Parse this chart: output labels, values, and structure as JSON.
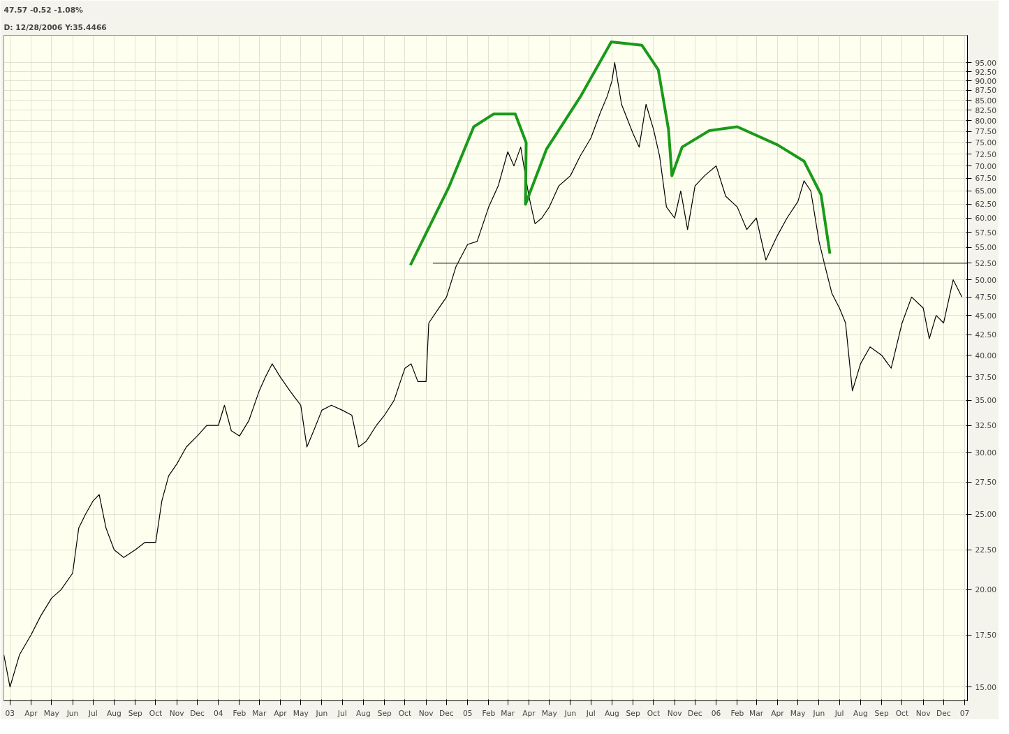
{
  "chart_data": {
    "type": "line",
    "annotations": [
      "47.57  -0.52  -1.08%",
      "D: 12/28/2006 Y:35.4466"
    ],
    "xlim": [
      "2003-02-20",
      "2007-01-05"
    ],
    "ylim": [
      14.4,
      103
    ],
    "log": "y",
    "grid": true,
    "marker": "none",
    "line_style": "solid",
    "xticks": [
      {
        "value": "2003-03-01",
        "label": "03"
      },
      {
        "value": "2003-04-01",
        "label": "Apr"
      },
      {
        "value": "2003-05-01",
        "label": "May"
      },
      {
        "value": "2003-06-01",
        "label": "Jun"
      },
      {
        "value": "2003-07-01",
        "label": "Jul"
      },
      {
        "value": "2003-08-01",
        "label": "Aug"
      },
      {
        "value": "2003-09-01",
        "label": "Sep"
      },
      {
        "value": "2003-10-01",
        "label": "Oct"
      },
      {
        "value": "2003-11-01",
        "label": "Nov"
      },
      {
        "value": "2003-12-01",
        "label": "Dec"
      },
      {
        "value": "2004-01-01",
        "label": "04"
      },
      {
        "value": "2004-02-01",
        "label": "Feb"
      },
      {
        "value": "2004-03-01",
        "label": "Mar"
      },
      {
        "value": "2004-04-01",
        "label": "Apr"
      },
      {
        "value": "2004-05-01",
        "label": "May"
      },
      {
        "value": "2004-06-01",
        "label": "Jun"
      },
      {
        "value": "2004-07-01",
        "label": "Jul"
      },
      {
        "value": "2004-08-01",
        "label": "Aug"
      },
      {
        "value": "2004-09-01",
        "label": "Sep"
      },
      {
        "value": "2004-10-01",
        "label": "Oct"
      },
      {
        "value": "2004-11-01",
        "label": "Nov"
      },
      {
        "value": "2004-12-01",
        "label": "Dec"
      },
      {
        "value": "2005-01-01",
        "label": "05"
      },
      {
        "value": "2005-02-01",
        "label": "Feb"
      },
      {
        "value": "2005-03-01",
        "label": "Mar"
      },
      {
        "value": "2005-04-01",
        "label": "Apr"
      },
      {
        "value": "2005-05-01",
        "label": "May"
      },
      {
        "value": "2005-06-01",
        "label": "Jun"
      },
      {
        "value": "2005-07-01",
        "label": "Jul"
      },
      {
        "value": "2005-08-01",
        "label": "Aug"
      },
      {
        "value": "2005-09-01",
        "label": "Sep"
      },
      {
        "value": "2005-10-01",
        "label": "Oct"
      },
      {
        "value": "2005-11-01",
        "label": "Nov"
      },
      {
        "value": "2005-12-01",
        "label": "Dec"
      },
      {
        "value": "2006-01-01",
        "label": "06"
      },
      {
        "value": "2006-02-01",
        "label": "Feb"
      },
      {
        "value": "2006-03-01",
        "label": "Mar"
      },
      {
        "value": "2006-04-01",
        "label": "Apr"
      },
      {
        "value": "2006-05-01",
        "label": "May"
      },
      {
        "value": "2006-06-01",
        "label": "Jun"
      },
      {
        "value": "2006-07-01",
        "label": "Jul"
      },
      {
        "value": "2006-08-01",
        "label": "Aug"
      },
      {
        "value": "2006-09-01",
        "label": "Sep"
      },
      {
        "value": "2006-10-01",
        "label": "Oct"
      },
      {
        "value": "2006-11-01",
        "label": "Nov"
      },
      {
        "value": "2006-12-01",
        "label": "Dec"
      },
      {
        "value": "2007-01-01",
        "label": "07"
      }
    ],
    "yticks": [
      {
        "value": 15,
        "label": "15.00"
      },
      {
        "value": 17.5,
        "label": "17.50"
      },
      {
        "value": 20,
        "label": "20.00"
      },
      {
        "value": 22.5,
        "label": "22.50"
      },
      {
        "value": 25,
        "label": "25.00"
      },
      {
        "value": 27.5,
        "label": "27.50"
      },
      {
        "value": 30,
        "label": "30.00"
      },
      {
        "value": 32.5,
        "label": "32.50"
      },
      {
        "value": 35,
        "label": "35.00"
      },
      {
        "value": 37.5,
        "label": "37.50"
      },
      {
        "value": 40,
        "label": "40.00"
      },
      {
        "value": 42.5,
        "label": "42.50"
      },
      {
        "value": 45,
        "label": "45.00"
      },
      {
        "value": 47.5,
        "label": "47.50"
      },
      {
        "value": 50,
        "label": "50.00"
      },
      {
        "value": 52.5,
        "label": "52.50"
      },
      {
        "value": 55,
        "label": "55.00"
      },
      {
        "value": 57.5,
        "label": "57.50"
      },
      {
        "value": 60,
        "label": "60.00"
      },
      {
        "value": 62.5,
        "label": "62.50"
      },
      {
        "value": 65,
        "label": "65.00"
      },
      {
        "value": 67.5,
        "label": "67.50"
      },
      {
        "value": 70,
        "label": "70.00"
      },
      {
        "value": 72.5,
        "label": "72.50"
      },
      {
        "value": 75,
        "label": "75.00"
      },
      {
        "value": 77.5,
        "label": "77.50"
      },
      {
        "value": 80,
        "label": "80.00"
      },
      {
        "value": 82.5,
        "label": "82.50"
      },
      {
        "value": 85,
        "label": "85.00"
      },
      {
        "value": 87.5,
        "label": "87.50"
      },
      {
        "value": 90,
        "label": "90.00"
      },
      {
        "value": 92.5,
        "label": "92.50"
      },
      {
        "value": 95,
        "label": "95.00"
      }
    ],
    "series": [
      {
        "color": "#000000",
        "x": [
          "2003-02-20",
          "2003-03-01",
          "2003-03-15",
          "2003-04-01",
          "2003-04-15",
          "2003-05-01",
          "2003-05-15",
          "2003-06-01",
          "2003-06-10",
          "2003-06-20",
          "2003-07-01",
          "2003-07-10",
          "2003-07-20",
          "2003-08-01",
          "2003-08-15",
          "2003-09-01",
          "2003-09-15",
          "2003-10-01",
          "2003-10-10",
          "2003-10-20",
          "2003-11-01",
          "2003-11-15",
          "2003-12-01",
          "2003-12-15",
          "2004-01-01",
          "2004-01-10",
          "2004-01-20",
          "2004-02-01",
          "2004-02-15",
          "2004-03-01",
          "2004-03-10",
          "2004-03-20",
          "2004-04-01",
          "2004-04-15",
          "2004-05-01",
          "2004-05-10",
          "2004-05-20",
          "2004-06-01",
          "2004-06-15",
          "2004-07-01",
          "2004-07-15",
          "2004-07-25",
          "2004-08-05",
          "2004-08-20",
          "2004-09-01",
          "2004-09-15",
          "2004-10-01",
          "2004-10-10",
          "2004-10-20",
          "2004-11-01",
          "2004-11-05",
          "2004-11-20",
          "2004-12-01",
          "2004-12-15",
          "2005-01-01",
          "2005-01-15",
          "2005-02-01",
          "2005-02-15",
          "2005-03-01",
          "2005-03-10",
          "2005-03-20",
          "2005-04-01",
          "2005-04-10",
          "2005-04-20",
          "2005-05-01",
          "2005-05-15",
          "2005-06-01",
          "2005-06-15",
          "2005-07-01",
          "2005-07-15",
          "2005-07-25",
          "2005-08-01",
          "2005-08-05",
          "2005-08-15",
          "2005-09-01",
          "2005-09-10",
          "2005-09-20",
          "2005-10-01",
          "2005-10-10",
          "2005-10-20",
          "2005-11-01",
          "2005-11-10",
          "2005-11-20",
          "2005-12-01",
          "2005-12-15",
          "2006-01-01",
          "2006-01-15",
          "2006-02-01",
          "2006-02-15",
          "2006-03-01",
          "2006-03-15",
          "2006-04-01",
          "2006-04-15",
          "2006-05-01",
          "2006-05-10",
          "2006-05-20",
          "2006-06-01",
          "2006-06-10",
          "2006-06-20",
          "2006-07-01",
          "2006-07-10",
          "2006-07-20",
          "2006-08-01",
          "2006-08-15",
          "2006-09-01",
          "2006-09-15",
          "2006-10-01",
          "2006-10-15",
          "2006-11-01",
          "2006-11-10",
          "2006-11-20",
          "2006-12-01",
          "2006-12-15",
          "2006-12-28"
        ],
        "values": [
          16.5,
          15,
          16.5,
          17.5,
          18.5,
          19.5,
          20,
          21,
          24,
          25,
          26,
          26.5,
          24,
          22.5,
          22,
          22.5,
          23,
          23,
          26,
          28,
          29,
          30.5,
          31.5,
          32.5,
          32.5,
          34.5,
          32,
          31.5,
          33,
          36,
          37.5,
          39,
          37.5,
          36,
          34.5,
          30.5,
          32,
          34,
          34.5,
          34,
          33.5,
          30.5,
          31,
          32.5,
          33.5,
          35,
          38.5,
          39,
          37,
          37,
          44,
          46,
          47.5,
          52,
          55.5,
          56,
          62,
          66,
          73,
          70,
          74,
          64,
          59,
          60,
          62,
          66,
          68,
          72,
          76,
          82,
          86,
          90,
          95,
          84,
          77,
          74,
          84,
          78,
          72,
          62,
          60,
          65,
          58,
          66,
          68,
          70,
          64,
          62,
          58,
          60,
          53,
          57,
          60,
          63,
          67,
          65,
          56,
          52,
          48,
          46,
          44,
          36,
          39,
          41,
          40,
          38.5,
          44,
          47.5,
          46,
          42,
          45,
          44,
          50,
          47.5
        ]
      },
      {
        "color": "#3a4a2a",
        "x": [
          "2004-11-11",
          "2007-01-05"
        ],
        "values": [
          52.5,
          52.5
        ]
      },
      {
        "color": "#1a9a1a",
        "x": [
          "2004-10-09",
          "2004-12-05",
          "2005-01-10",
          "2005-02-08",
          "2005-03-12",
          "2005-03-28",
          "2005-03-27",
          "2005-04-27",
          "2005-06-16",
          "2005-07-31",
          "2005-09-14",
          "2005-10-08",
          "2005-10-23",
          "2005-10-28",
          "2005-11-12",
          "2005-12-22",
          "2006-02-01",
          "2006-04-01",
          "2006-05-10",
          "2006-06-04",
          "2006-06-17"
        ],
        "values": [
          52.2,
          65.9,
          78.6,
          81.6,
          81.6,
          75,
          62.5,
          73.6,
          86,
          101,
          100,
          93,
          78,
          68,
          74,
          77.7,
          78.6,
          74.5,
          71,
          64.3,
          54
        ]
      }
    ]
  }
}
